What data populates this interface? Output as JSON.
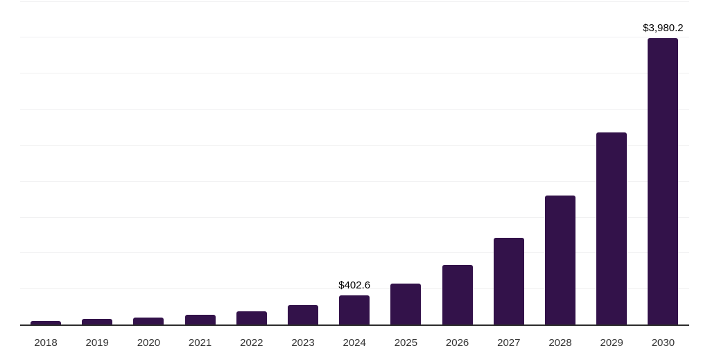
{
  "chart_data": {
    "type": "bar",
    "title": "",
    "xlabel": "",
    "ylabel": "",
    "categories": [
      "2018",
      "2019",
      "2020",
      "2021",
      "2022",
      "2023",
      "2024",
      "2025",
      "2026",
      "2027",
      "2028",
      "2029",
      "2030"
    ],
    "values": [
      50,
      73,
      101,
      137,
      185,
      272,
      402.6,
      570,
      825,
      1210,
      1790,
      2670,
      3980.2
    ],
    "labeled_points": [
      {
        "category": "2024",
        "value": 402.6,
        "text": "$402.6"
      },
      {
        "category": "2030",
        "value": 3980.2,
        "text": "$3,980.2"
      }
    ],
    "ylim": [
      0,
      4500
    ],
    "gridline_step": 500,
    "grid": true,
    "legend_position": "none",
    "y_axis_labels_visible": false,
    "colors": {
      "bar": "#33124a",
      "gridline": "#f0f0f1",
      "axis": "#2b2b2b",
      "tick_label": "#333333",
      "data_label": "#000000",
      "background": "#ffffff"
    }
  }
}
